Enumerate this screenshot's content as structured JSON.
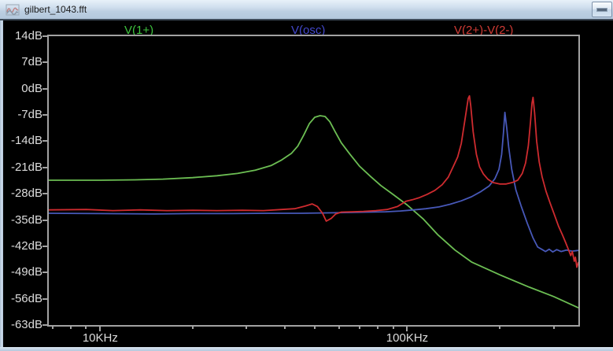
{
  "window": {
    "title": "gilbert_1043.fft"
  },
  "icons": {
    "app": "waveform-icon",
    "window_button": "minimize-icon"
  },
  "colors": {
    "titlebar_text": "#1b1b1b",
    "plot_bg": "#000000",
    "axis_border": "#a2a2a2",
    "tick_label": "#dcdcdc",
    "legend_green": "#3ec43e",
    "legend_blue": "#4348cc",
    "legend_red": "#d23b35",
    "trace_green": "#6cbe53",
    "trace_blue": "#4758b8",
    "trace_red": "#ce2b2f"
  },
  "chart_data": {
    "type": "line",
    "title": "",
    "x_scale": "log",
    "xlabel": "",
    "ylabel": "",
    "x_range_hz": [
      6800,
      361000
    ],
    "y_range_db": [
      -63,
      14
    ],
    "grid": false,
    "legend_position": "top",
    "y_ticks": [
      {
        "db": 14,
        "label": "14dB"
      },
      {
        "db": 7,
        "label": "7dB"
      },
      {
        "db": 0,
        "label": "0dB"
      },
      {
        "db": -7,
        "label": "-7dB"
      },
      {
        "db": -14,
        "label": "-14dB"
      },
      {
        "db": -21,
        "label": "-21dB"
      },
      {
        "db": -28,
        "label": "-28dB"
      },
      {
        "db": -35,
        "label": "-35dB"
      },
      {
        "db": -42,
        "label": "-42dB"
      },
      {
        "db": -49,
        "label": "-49dB"
      },
      {
        "db": -56,
        "label": "-56dB"
      },
      {
        "db": -63,
        "label": "-63dB"
      }
    ],
    "x_ticks": [
      {
        "hz": 7000
      },
      {
        "hz": 8000
      },
      {
        "hz": 9000
      },
      {
        "hz": 10000,
        "label": "10KHz"
      },
      {
        "hz": 20000
      },
      {
        "hz": 30000
      },
      {
        "hz": 40000
      },
      {
        "hz": 50000
      },
      {
        "hz": 60000
      },
      {
        "hz": 70000
      },
      {
        "hz": 80000
      },
      {
        "hz": 90000
      },
      {
        "hz": 100000,
        "label": "100KHz"
      },
      {
        "hz": 200000
      },
      {
        "hz": 300000
      }
    ],
    "series": [
      {
        "name": "V(1+)",
        "color": "#6cbe53",
        "label_color": "#3ec43e",
        "points": [
          [
            6800,
            -24.4
          ],
          [
            8000,
            -24.4
          ],
          [
            10000,
            -24.4
          ],
          [
            13000,
            -24.3
          ],
          [
            16000,
            -24.1
          ],
          [
            20000,
            -23.7
          ],
          [
            24000,
            -23.2
          ],
          [
            28000,
            -22.6
          ],
          [
            32000,
            -21.7
          ],
          [
            36000,
            -20.5
          ],
          [
            39000,
            -19.0
          ],
          [
            42000,
            -17.2
          ],
          [
            44000,
            -15.3
          ],
          [
            46000,
            -12.4
          ],
          [
            48000,
            -9.3
          ],
          [
            50000,
            -7.6
          ],
          [
            52000,
            -7.2
          ],
          [
            54000,
            -7.4
          ],
          [
            56000,
            -8.8
          ],
          [
            58000,
            -11.2
          ],
          [
            61000,
            -14.4
          ],
          [
            65000,
            -17.4
          ],
          [
            70000,
            -20.7
          ],
          [
            76000,
            -23.4
          ],
          [
            82000,
            -25.8
          ],
          [
            90000,
            -28.2
          ],
          [
            100000,
            -31.0
          ],
          [
            113000,
            -34.8
          ],
          [
            126000,
            -39.0
          ],
          [
            143000,
            -43.0
          ],
          [
            162000,
            -46.2
          ],
          [
            200000,
            -49.6
          ],
          [
            250000,
            -52.9
          ],
          [
            300000,
            -55.4
          ],
          [
            361000,
            -58.4
          ]
        ]
      },
      {
        "name": "V(osc)",
        "color": "#4758b8",
        "label_color": "#4348cc",
        "points": [
          [
            6800,
            -33.2
          ],
          [
            10000,
            -33.3
          ],
          [
            15000,
            -33.4
          ],
          [
            20000,
            -33.3
          ],
          [
            27000,
            -33.3
          ],
          [
            35000,
            -33.2
          ],
          [
            45000,
            -33.2
          ],
          [
            55000,
            -33.1
          ],
          [
            65000,
            -33.0
          ],
          [
            75000,
            -32.9
          ],
          [
            85000,
            -32.8
          ],
          [
            95000,
            -32.6
          ],
          [
            105000,
            -32.3
          ],
          [
            115000,
            -32.0
          ],
          [
            127000,
            -31.5
          ],
          [
            138000,
            -30.8
          ],
          [
            150000,
            -29.9
          ],
          [
            162000,
            -28.8
          ],
          [
            174000,
            -27.4
          ],
          [
            185000,
            -25.9
          ],
          [
            193000,
            -24.0
          ],
          [
            199000,
            -21.5
          ],
          [
            203000,
            -17.5
          ],
          [
            206000,
            -11.5
          ],
          [
            208000,
            -6.3
          ],
          [
            211000,
            -10.5
          ],
          [
            214000,
            -15.5
          ],
          [
            219000,
            -21.5
          ],
          [
            226000,
            -27.0
          ],
          [
            235000,
            -31.3
          ],
          [
            246000,
            -35.8
          ],
          [
            257000,
            -39.8
          ],
          [
            266000,
            -42.2
          ],
          [
            274000,
            -42.8
          ],
          [
            282000,
            -43.4
          ],
          [
            290000,
            -42.8
          ],
          [
            298000,
            -43.5
          ],
          [
            307000,
            -42.9
          ],
          [
            317000,
            -43.4
          ],
          [
            330000,
            -43.0
          ],
          [
            345000,
            -43.3
          ],
          [
            361000,
            -43.1
          ]
        ]
      },
      {
        "name": "V(2+)-V(2-)",
        "color": "#ce2b2f",
        "label_color": "#d23b35",
        "points": [
          [
            6800,
            -32.3
          ],
          [
            9000,
            -32.2
          ],
          [
            11000,
            -32.5
          ],
          [
            13500,
            -32.3
          ],
          [
            16500,
            -32.5
          ],
          [
            20000,
            -32.4
          ],
          [
            24000,
            -32.5
          ],
          [
            29000,
            -32.4
          ],
          [
            34000,
            -32.5
          ],
          [
            39000,
            -32.2
          ],
          [
            43000,
            -32.0
          ],
          [
            46500,
            -31.3
          ],
          [
            49000,
            -30.7
          ],
          [
            51000,
            -31.4
          ],
          [
            53000,
            -33.2
          ],
          [
            54500,
            -35.3
          ],
          [
            56500,
            -34.6
          ],
          [
            58500,
            -33.4
          ],
          [
            61000,
            -32.9
          ],
          [
            66000,
            -32.8
          ],
          [
            72000,
            -32.7
          ],
          [
            79000,
            -32.5
          ],
          [
            86000,
            -32.2
          ],
          [
            93000,
            -31.4
          ],
          [
            99000,
            -30.0
          ],
          [
            104000,
            -29.6
          ],
          [
            109000,
            -29.1
          ],
          [
            116000,
            -28.2
          ],
          [
            123000,
            -27.1
          ],
          [
            130000,
            -25.6
          ],
          [
            136000,
            -23.6
          ],
          [
            141000,
            -20.9
          ],
          [
            146000,
            -18.2
          ],
          [
            150000,
            -14.6
          ],
          [
            154000,
            -8.5
          ],
          [
            158000,
            -2.6
          ],
          [
            159500,
            -1.9
          ],
          [
            161000,
            -4.5
          ],
          [
            164000,
            -11.5
          ],
          [
            168000,
            -17.5
          ],
          [
            172000,
            -20.8
          ],
          [
            177000,
            -22.7
          ],
          [
            183000,
            -24.1
          ],
          [
            190000,
            -25.0
          ],
          [
            200000,
            -25.4
          ],
          [
            210000,
            -25.4
          ],
          [
            220000,
            -25.0
          ],
          [
            229000,
            -24.4
          ],
          [
            237000,
            -22.6
          ],
          [
            243000,
            -19.8
          ],
          [
            248000,
            -15.2
          ],
          [
            252000,
            -9.0
          ],
          [
            255000,
            -3.8
          ],
          [
            257000,
            -2.3
          ],
          [
            260000,
            -6.5
          ],
          [
            264000,
            -14.0
          ],
          [
            269000,
            -19.5
          ],
          [
            275000,
            -23.5
          ],
          [
            283000,
            -27.3
          ],
          [
            292000,
            -30.5
          ],
          [
            301000,
            -33.4
          ],
          [
            311000,
            -36.6
          ],
          [
            320000,
            -38.9
          ],
          [
            328000,
            -41.0
          ],
          [
            336000,
            -43.1
          ],
          [
            341000,
            -44.5
          ],
          [
            345000,
            -43.4
          ],
          [
            350000,
            -46.0
          ],
          [
            353000,
            -44.9
          ],
          [
            357000,
            -47.6
          ],
          [
            361000,
            -46.3
          ]
        ]
      }
    ]
  }
}
